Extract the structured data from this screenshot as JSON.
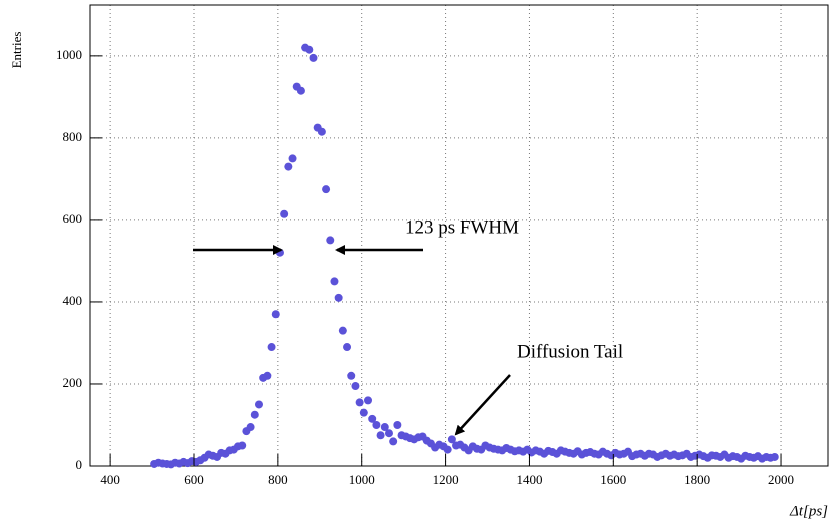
{
  "chart_data": {
    "type": "scatter",
    "y_label": "Entries",
    "x_label": "Δt[ps]",
    "annotations": [
      "123 ps FWHM",
      "Diffusion Tail"
    ],
    "xlim": [
      352,
      2112
    ],
    "ylim": [
      0,
      1124
    ],
    "xticks": [
      400,
      600,
      800,
      1000,
      1200,
      1400,
      1600,
      1800,
      2000
    ],
    "yticks": [
      0,
      200,
      400,
      600,
      800,
      1000
    ],
    "grid": true,
    "series": [
      {
        "color": "#5b52d8",
        "x": [
          505,
          515,
          525,
          535,
          545,
          555,
          565,
          575,
          585,
          595,
          605,
          615,
          625,
          635,
          645,
          655,
          665,
          675,
          685,
          695,
          705,
          715,
          725,
          735,
          745,
          755,
          765,
          775,
          785,
          795,
          805,
          815,
          825,
          835,
          845,
          855,
          865,
          875,
          885,
          895,
          905,
          915,
          925,
          935,
          945,
          955,
          965,
          975,
          985,
          995,
          1005,
          1015,
          1025,
          1035,
          1045,
          1055,
          1065,
          1075,
          1085,
          1095,
          1105,
          1115,
          1125,
          1135,
          1145,
          1155,
          1165,
          1175,
          1185,
          1195,
          1205,
          1215,
          1225,
          1235,
          1245,
          1255,
          1265,
          1275,
          1285,
          1295,
          1305,
          1315,
          1325,
          1335,
          1345,
          1355,
          1365,
          1375,
          1385,
          1395,
          1405,
          1415,
          1425,
          1435,
          1445,
          1455,
          1465,
          1475,
          1485,
          1495,
          1505,
          1515,
          1525,
          1535,
          1545,
          1555,
          1565,
          1575,
          1585,
          1595,
          1605,
          1615,
          1625,
          1635,
          1645,
          1655,
          1665,
          1675,
          1685,
          1695,
          1705,
          1715,
          1725,
          1735,
          1745,
          1755,
          1765,
          1775,
          1785,
          1795,
          1805,
          1815,
          1825,
          1835,
          1845,
          1855,
          1865,
          1875,
          1885,
          1895,
          1905,
          1915,
          1925,
          1935,
          1945,
          1955,
          1965,
          1975,
          1985
        ],
        "values": [
          5,
          8,
          6,
          5,
          4,
          8,
          6,
          10,
          7,
          12,
          10,
          14,
          20,
          28,
          25,
          22,
          32,
          30,
          38,
          40,
          48,
          50,
          85,
          95,
          125,
          150,
          215,
          220,
          290,
          370,
          520,
          615,
          730,
          750,
          925,
          915,
          1020,
          1015,
          995,
          825,
          815,
          675,
          550,
          450,
          410,
          330,
          290,
          220,
          195,
          155,
          130,
          160,
          115,
          100,
          75,
          95,
          80,
          60,
          100,
          75,
          72,
          68,
          65,
          70,
          72,
          62,
          55,
          45,
          52,
          48,
          40,
          65,
          50,
          52,
          45,
          38,
          48,
          42,
          40,
          50,
          45,
          42,
          40,
          38,
          44,
          40,
          36,
          38,
          35,
          40,
          33,
          38,
          35,
          30,
          37,
          34,
          30,
          38,
          35,
          32,
          30,
          36,
          28,
          32,
          34,
          30,
          28,
          35,
          30,
          26,
          32,
          28,
          30,
          35,
          24,
          28,
          30,
          25,
          30,
          28,
          22,
          26,
          30,
          25,
          28,
          24,
          26,
          30,
          22,
          25,
          28,
          24,
          20,
          26,
          25,
          22,
          28,
          20,
          24,
          22,
          18,
          25,
          22,
          20,
          24,
          18,
          22,
          20,
          22
        ]
      }
    ]
  }
}
